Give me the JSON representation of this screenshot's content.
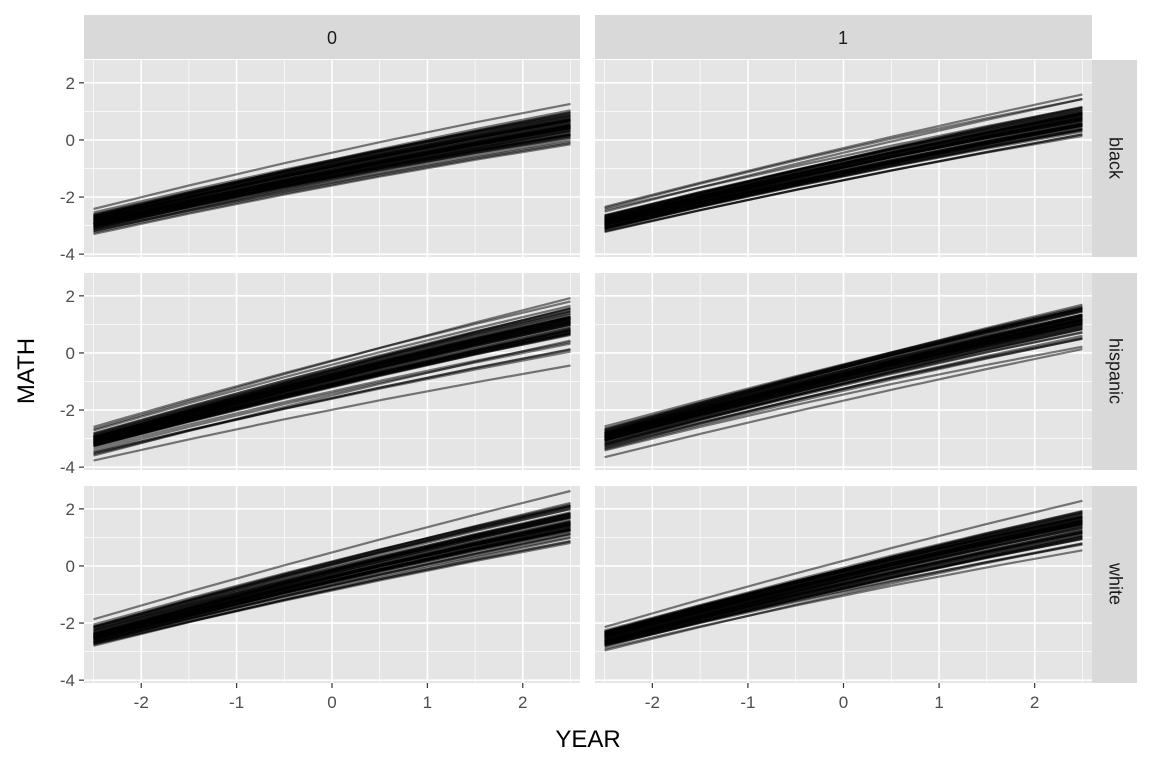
{
  "chart_data": {
    "type": "line",
    "facet_columns": [
      "0",
      "1"
    ],
    "facet_rows": [
      "black",
      "hispanic",
      "white"
    ],
    "xlabel": "YEAR",
    "ylabel": "MATH",
    "xlim": [
      -2.6,
      2.6
    ],
    "ylim": [
      -4.1,
      2.8
    ],
    "x_ticks": [
      -2,
      -1,
      0,
      1,
      2
    ],
    "y_ticks": [
      -4,
      -2,
      0,
      2
    ],
    "x": [
      -2.5,
      -1.5,
      -0.5,
      0.5,
      1.5,
      2.5
    ],
    "line_color": "#000000",
    "line_opacity": 0.5,
    "panel_background": "#e5e5e5",
    "strip_background": "#d9d9d9",
    "grid_color": "#ffffff",
    "legend": "none",
    "panels": [
      {
        "column": "0",
        "row": "black",
        "center_start": -2.9,
        "center_end": 0.5,
        "spread_start": 0.35,
        "spread_end": 0.55,
        "n_lines": 60
      },
      {
        "column": "1",
        "row": "black",
        "center_start": -2.9,
        "center_end": 0.7,
        "spread_start": 0.35,
        "spread_end": 0.55,
        "n_lines": 60
      },
      {
        "column": "0",
        "row": "hispanic",
        "center_start": -3.1,
        "center_end": 1.0,
        "spread_start": 0.35,
        "spread_end": 0.6,
        "n_lines": 60
      },
      {
        "column": "1",
        "row": "hispanic",
        "center_start": -3.0,
        "center_end": 1.1,
        "spread_start": 0.35,
        "spread_end": 0.6,
        "n_lines": 60
      },
      {
        "column": "0",
        "row": "white",
        "center_start": -2.5,
        "center_end": 1.5,
        "spread_start": 0.35,
        "spread_end": 0.65,
        "n_lines": 60
      },
      {
        "column": "1",
        "row": "white",
        "center_start": -2.6,
        "center_end": 1.3,
        "spread_start": 0.35,
        "spread_end": 0.65,
        "n_lines": 60
      }
    ]
  }
}
